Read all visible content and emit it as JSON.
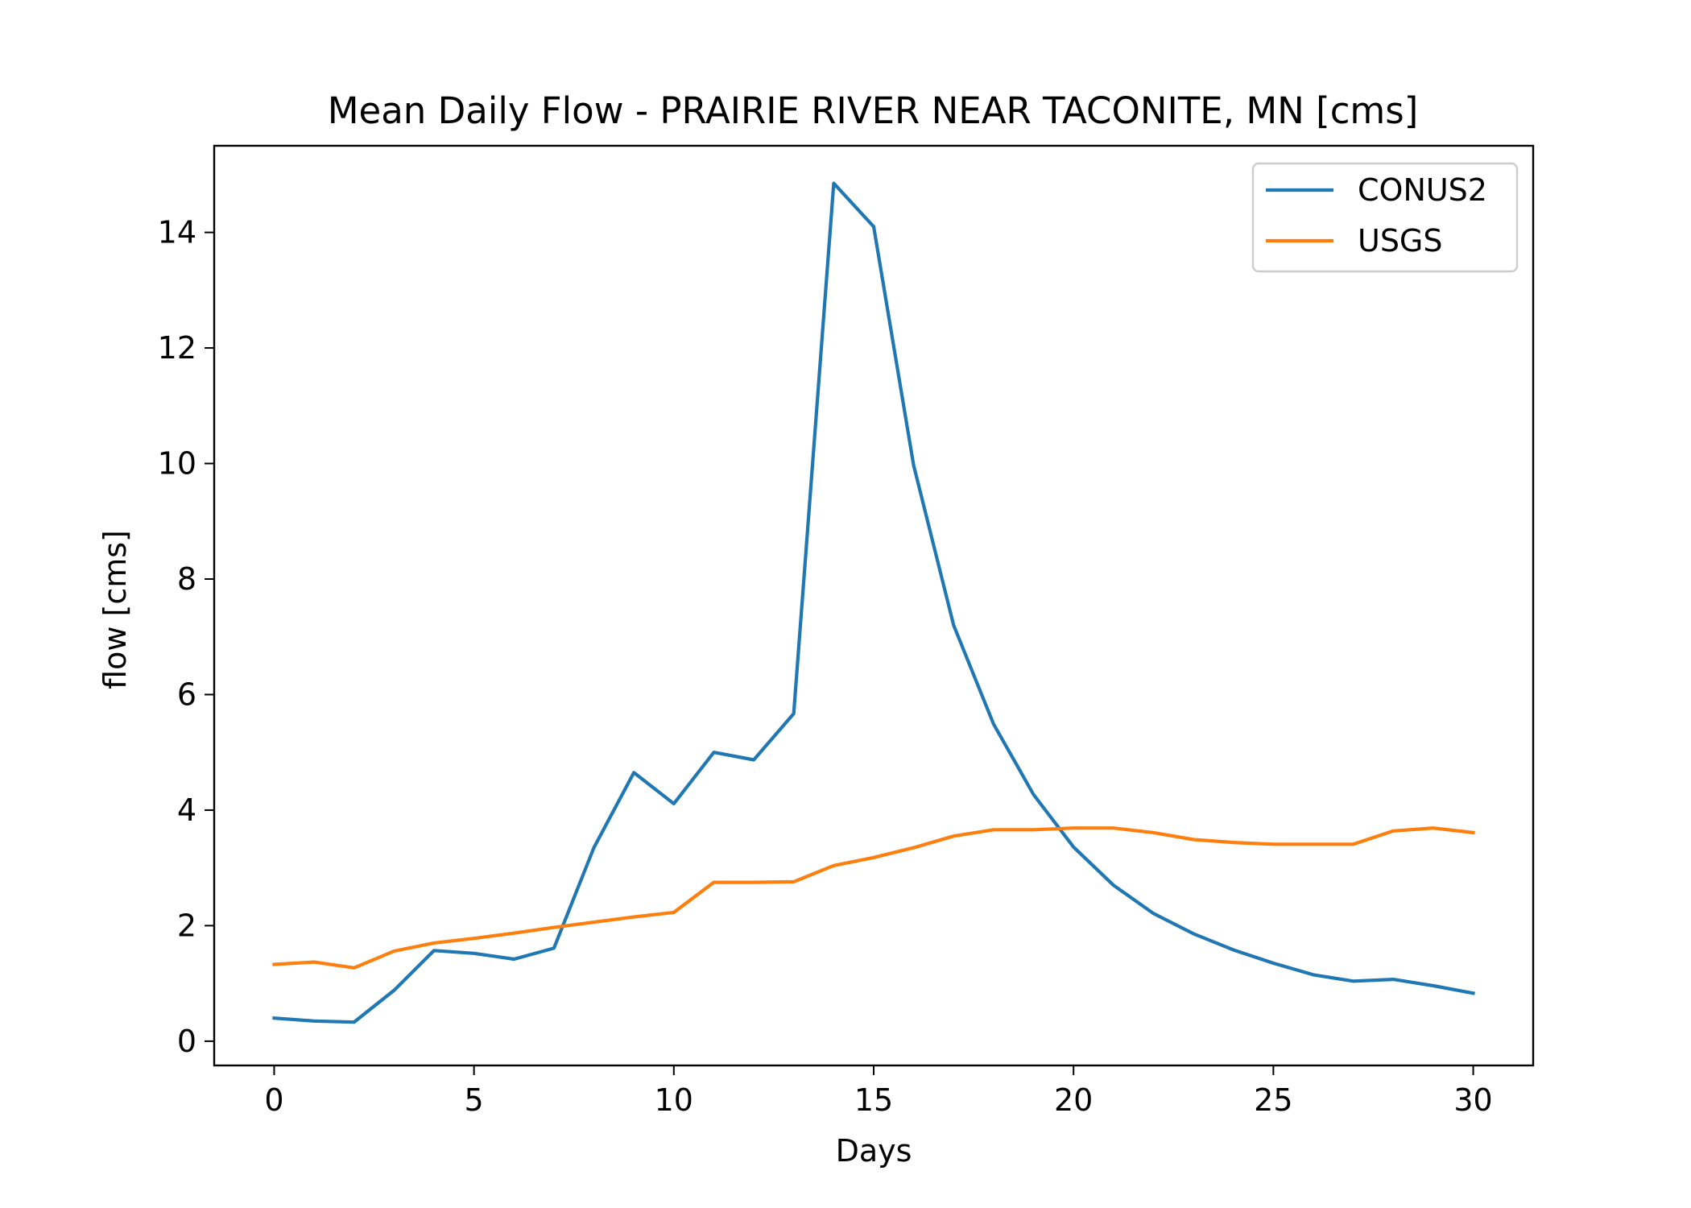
{
  "chart_data": {
    "type": "line",
    "title": "Mean Daily Flow - PRAIRIE RIVER NEAR TACONITE, MN [cms]",
    "xlabel": "Days",
    "ylabel": "flow [cms]",
    "xlim": [
      -1.5,
      31.5
    ],
    "ylim": [
      -0.42,
      15.5
    ],
    "xticks": [
      0,
      5,
      10,
      15,
      20,
      25,
      30
    ],
    "yticks": [
      0,
      2,
      4,
      6,
      8,
      10,
      12,
      14
    ],
    "grid": false,
    "legend_position": "upper right",
    "x": [
      0,
      1,
      2,
      3,
      4,
      5,
      6,
      7,
      8,
      9,
      10,
      11,
      12,
      13,
      14,
      15,
      16,
      17,
      18,
      19,
      20,
      21,
      22,
      23,
      24,
      25,
      26,
      27,
      28,
      29,
      30
    ],
    "series": [
      {
        "name": "CONUS2",
        "color": "#1f77b4",
        "values": [
          0.4,
          0.35,
          0.33,
          0.88,
          1.57,
          1.52,
          1.42,
          1.61,
          3.35,
          4.65,
          4.11,
          5.0,
          4.87,
          5.67,
          14.85,
          14.1,
          9.97,
          7.2,
          5.49,
          4.27,
          3.36,
          2.7,
          2.21,
          1.86,
          1.58,
          1.35,
          1.15,
          1.04,
          1.07,
          0.96,
          0.83
        ]
      },
      {
        "name": "USGS",
        "color": "#ff7f0e",
        "values": [
          1.33,
          1.37,
          1.27,
          1.56,
          1.7,
          1.78,
          1.87,
          1.97,
          2.06,
          2.15,
          2.23,
          2.75,
          2.75,
          2.76,
          3.04,
          3.18,
          3.35,
          3.55,
          3.66,
          3.66,
          3.69,
          3.69,
          3.61,
          3.49,
          3.44,
          3.41,
          3.41,
          3.41,
          3.64,
          3.69,
          3.61
        ]
      }
    ]
  }
}
